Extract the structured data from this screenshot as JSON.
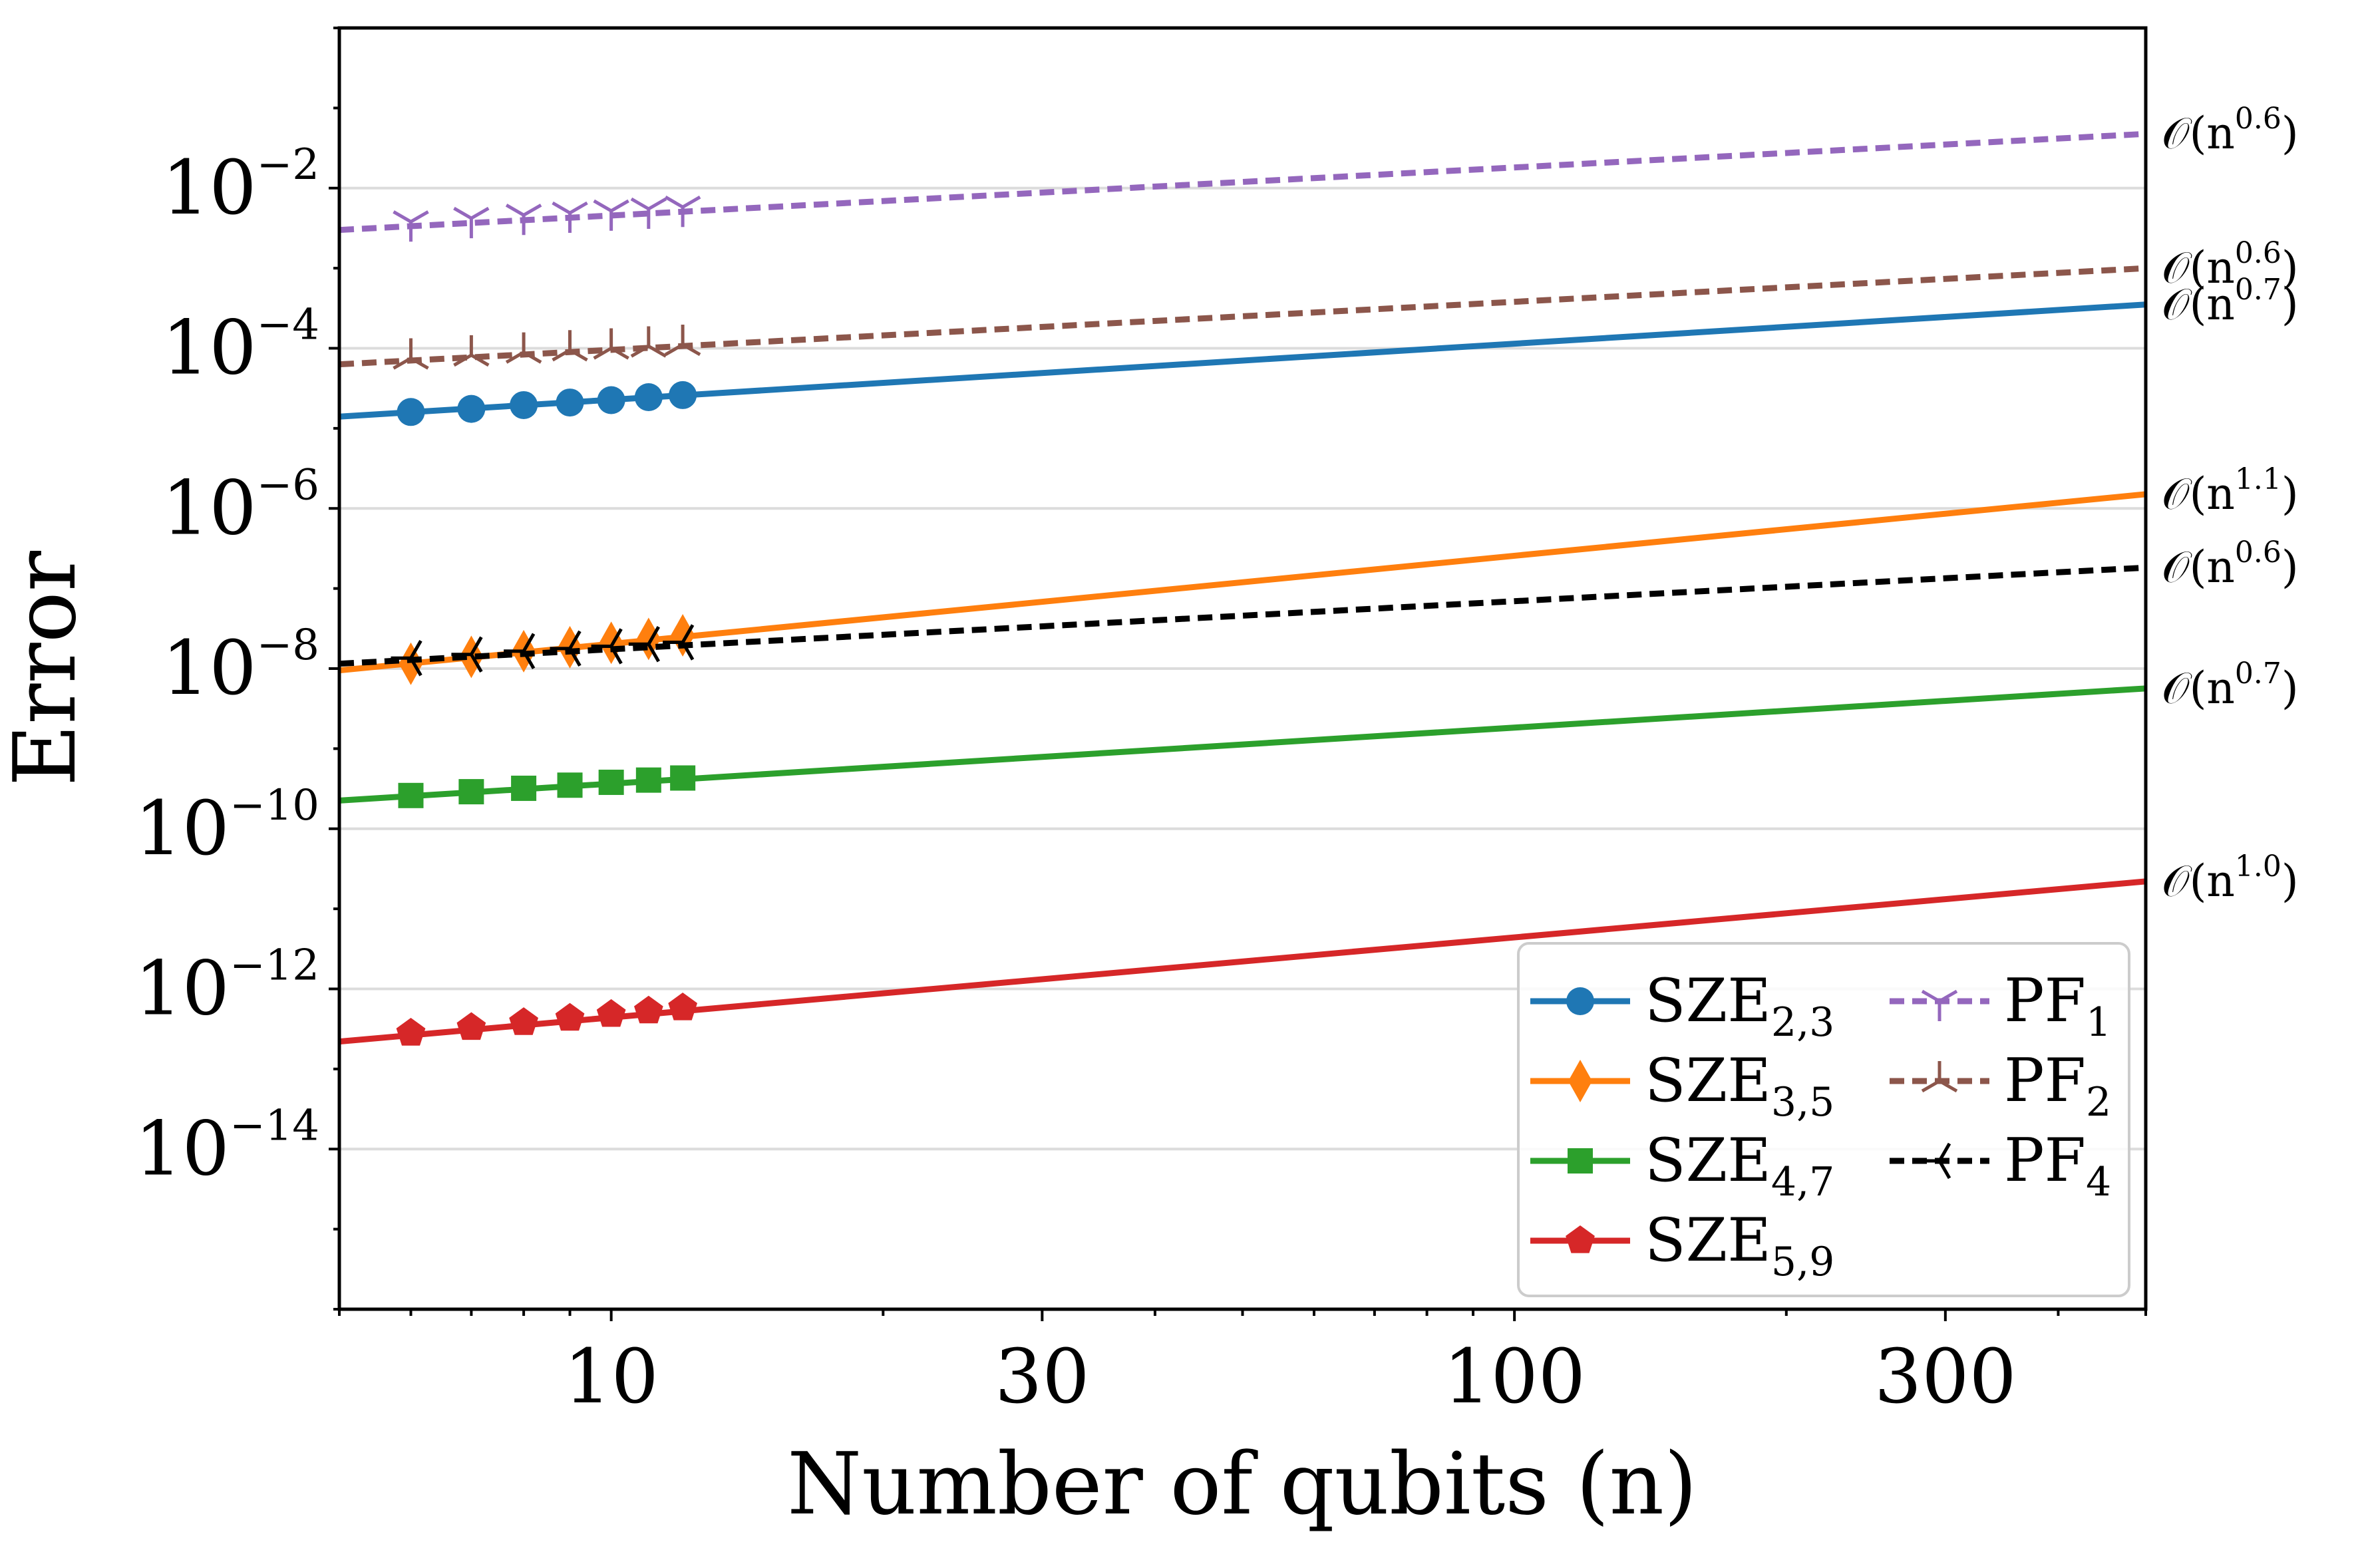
{
  "chart_data": {
    "type": "line",
    "xscale": "log",
    "yscale": "log",
    "xlabel": "Number of qubits (n)",
    "ylabel": "Error",
    "xlim": [
      5.0,
      500
    ],
    "ylim": [
      1e-16,
      1.0
    ],
    "x_ticks": [
      10,
      30,
      100,
      300
    ],
    "x_tick_labels": [
      "10",
      "30",
      "100",
      "300"
    ],
    "y_ticks": [
      -2,
      -4,
      -6,
      -8,
      -10,
      -12,
      -14
    ],
    "y_tick_labels": [
      {
        "base": "10",
        "exp": "−2"
      },
      {
        "base": "10",
        "exp": "−4"
      },
      {
        "base": "10",
        "exp": "−6"
      },
      {
        "base": "10",
        "exp": "−8"
      },
      {
        "base": "10",
        "exp": "−10"
      },
      {
        "base": "10",
        "exp": "−12"
      },
      {
        "base": "10",
        "exp": "−14"
      }
    ],
    "grid": "horizontal",
    "legend_position": "bottom-right",
    "marker_x": [
      6,
      7,
      8,
      9,
      10,
      11,
      12
    ],
    "series": [
      {
        "name": "SZE",
        "sub": "2,3",
        "color": "#1f77b4",
        "dash": "solid",
        "marker": "circle",
        "values": [
          1.6e-05,
          1.75e-05,
          1.95e-05,
          2.1e-05,
          2.25e-05,
          2.45e-05,
          2.6e-05
        ],
        "fit_range": [
          5,
          500
        ],
        "fit_at_x": [
          5,
          1.4e-05
        ],
        "slope": 0.7,
        "annotation": "0.7"
      },
      {
        "name": "SZE",
        "sub": "3,5",
        "color": "#ff7f0e",
        "dash": "solid",
        "marker": "diamond",
        "values": [
          1.15e-08,
          1.4e-08,
          1.65e-08,
          1.85e-08,
          2.1e-08,
          2.35e-08,
          2.6e-08
        ],
        "fit_range": [
          5,
          500
        ],
        "fit_at_x": [
          5,
          9.5e-09
        ],
        "slope": 1.1,
        "annotation": "1.1"
      },
      {
        "name": "SZE",
        "sub": "4,7",
        "color": "#2ca02c",
        "dash": "solid",
        "marker": "square",
        "values": [
          2.6e-10,
          2.9e-10,
          3.2e-10,
          3.5e-10,
          3.8e-10,
          4.05e-10,
          4.3e-10
        ],
        "fit_range": [
          5,
          500
        ],
        "fit_at_x": [
          5,
          2.25e-10
        ],
        "slope": 0.7,
        "annotation": "0.7"
      },
      {
        "name": "SZE",
        "sub": "5,9",
        "color": "#d62728",
        "dash": "solid",
        "marker": "pentagon",
        "values": [
          2.8e-13,
          3.3e-13,
          3.8e-13,
          4.3e-13,
          4.8e-13,
          5.3e-13,
          5.8e-13
        ],
        "fit_range": [
          5,
          500
        ],
        "fit_at_x": [
          5,
          2.2e-13
        ],
        "slope": 1.0,
        "annotation": "1.0"
      },
      {
        "name": "PF",
        "sub": "1",
        "color": "#9467bd",
        "dash": "dashed",
        "marker": "tri_down",
        "values": [
          0.0038,
          0.0042,
          0.0046,
          0.0049,
          0.0052,
          0.0055,
          0.0058
        ],
        "fit_range": [
          5,
          500
        ],
        "fit_at_x": [
          5,
          0.003
        ],
        "slope": 0.6,
        "annotation": "0.6"
      },
      {
        "name": "PF",
        "sub": "2",
        "color": "#8c564b",
        "dash": "dashed",
        "marker": "tri_up",
        "values": [
          7.5e-05,
          8.2e-05,
          8.9e-05,
          9.5e-05,
          0.0001,
          0.000106,
          0.000111
        ],
        "fit_range": [
          5,
          500
        ],
        "fit_at_x": [
          5,
          6.3e-05
        ],
        "slope": 0.6,
        "annotation": "0.6"
      },
      {
        "name": "PF",
        "sub": "4",
        "color": "#000000",
        "dash": "dashed",
        "marker": "tri_left",
        "values": [
          1.35e-08,
          1.5e-08,
          1.65e-08,
          1.78e-08,
          1.9e-08,
          2.02e-08,
          2.13e-08
        ],
        "fit_range": [
          5,
          500
        ],
        "fit_at_x": [
          5,
          1.15e-08
        ],
        "slope": 0.6,
        "annotation": "0.6"
      }
    ],
    "annotation_prefix": "𝒪(n",
    "annotation_suffix": ")"
  }
}
